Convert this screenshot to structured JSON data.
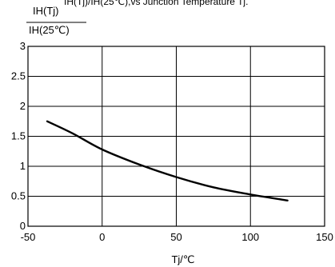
{
  "chart_data": {
    "type": "line",
    "title": "IH(Tj)/IH(25℃),vs Junction Temperature Tj.",
    "ylabel_numerator": "IH(Tj)",
    "ylabel_denominator": "IH(25℃)",
    "xlabel": "Tj/℃",
    "xlim": [
      -50,
      150
    ],
    "ylim": [
      0,
      3
    ],
    "x_ticks": [
      -50,
      0,
      50,
      100,
      150
    ],
    "y_ticks": [
      0,
      0.5,
      1,
      1.5,
      2,
      2.5,
      3
    ],
    "x_tick_labels": [
      "-50",
      "0",
      "50",
      "100",
      "150"
    ],
    "y_tick_labels": [
      "0",
      "0.5",
      "1",
      "1.5",
      "2",
      "2.5",
      "3"
    ],
    "grid": true,
    "series": [
      {
        "x": [
          -37,
          -20,
          0,
          25,
          50,
          75,
          100,
          125
        ],
        "y": [
          1.75,
          1.55,
          1.28,
          1.03,
          0.82,
          0.65,
          0.53,
          0.43
        ]
      }
    ],
    "colors": {
      "line": "#000000",
      "grid": "#000000",
      "axis": "#000000"
    }
  }
}
